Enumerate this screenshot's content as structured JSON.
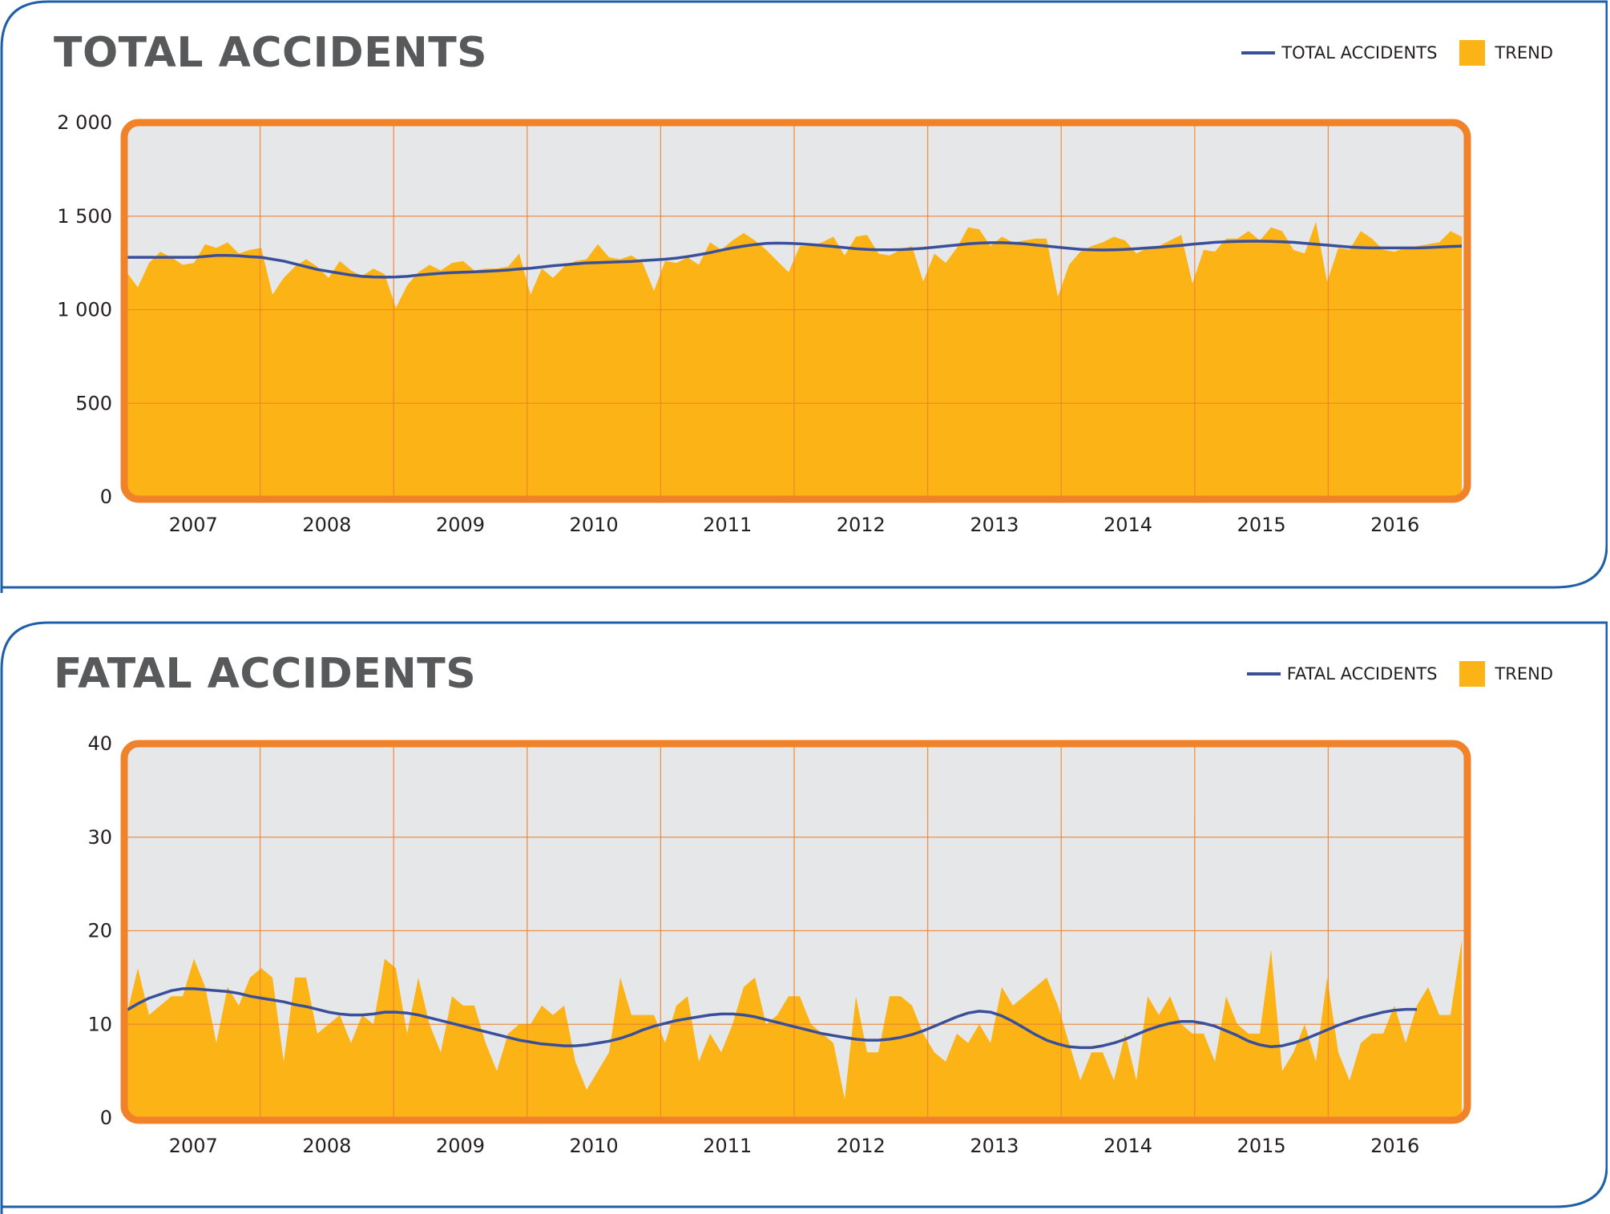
{
  "colors": {
    "area": "#fcb316",
    "trend_line": "#3a4f9a",
    "plot_border": "#f0822a",
    "plot_bg": "#e6e7e8",
    "grid": "#f0822a",
    "panel_border": "#1f5fa8",
    "title": "#58595b"
  },
  "icons": {
    "line_swatch": "legend-line-swatch",
    "area_swatch": "legend-area-swatch"
  },
  "chart_data": [
    {
      "type": "area",
      "title": "TOTAL ACCIDENTS",
      "legend": {
        "placement": "top-right",
        "line_label": "TOTAL ACCIDENTS",
        "area_label": "TREND"
      },
      "ylim": [
        0,
        2000
      ],
      "yticks": [
        0,
        500,
        1000,
        1500,
        2000
      ],
      "ytick_labels": [
        "0",
        "500",
        "1 000",
        "1 500",
        "2 000"
      ],
      "years": [
        "2007",
        "2008",
        "2009",
        "2010",
        "2011",
        "2012",
        "2013",
        "2014",
        "2015",
        "2016"
      ],
      "grid": true,
      "series": [
        {
          "name": "TREND",
          "kind": "area",
          "values": [
            1200,
            1120,
            1250,
            1310,
            1280,
            1240,
            1250,
            1350,
            1330,
            1360,
            1300,
            1320,
            1330,
            1080,
            1170,
            1230,
            1270,
            1230,
            1170,
            1260,
            1210,
            1180,
            1220,
            1190,
            1010,
            1130,
            1200,
            1240,
            1210,
            1250,
            1260,
            1210,
            1220,
            1220,
            1230,
            1300,
            1080,
            1220,
            1170,
            1230,
            1260,
            1270,
            1350,
            1280,
            1270,
            1290,
            1250,
            1100,
            1260,
            1250,
            1280,
            1240,
            1360,
            1320,
            1370,
            1410,
            1370,
            1320,
            1260,
            1200,
            1340,
            1340,
            1360,
            1390,
            1290,
            1390,
            1400,
            1300,
            1290,
            1320,
            1340,
            1150,
            1300,
            1250,
            1330,
            1440,
            1430,
            1340,
            1390,
            1360,
            1370,
            1380,
            1380,
            1070,
            1240,
            1310,
            1340,
            1360,
            1390,
            1370,
            1300,
            1330,
            1340,
            1370,
            1400,
            1140,
            1320,
            1310,
            1380,
            1380,
            1420,
            1370,
            1440,
            1420,
            1320,
            1300,
            1470,
            1150,
            1330,
            1320,
            1420,
            1380,
            1320,
            1310,
            1330,
            1340,
            1350,
            1360,
            1420,
            1390
          ]
        },
        {
          "name": "TOTAL ACCIDENTS",
          "kind": "line",
          "values": [
            1280,
            1280,
            1280,
            1280,
            1280,
            1280,
            1280,
            1285,
            1290,
            1290,
            1288,
            1283,
            1280,
            1270,
            1260,
            1245,
            1230,
            1215,
            1205,
            1195,
            1185,
            1178,
            1175,
            1174,
            1175,
            1178,
            1185,
            1190,
            1195,
            1198,
            1200,
            1202,
            1205,
            1208,
            1212,
            1218,
            1222,
            1228,
            1235,
            1240,
            1245,
            1250,
            1252,
            1254,
            1256,
            1258,
            1262,
            1266,
            1270,
            1276,
            1284,
            1294,
            1305,
            1318,
            1330,
            1340,
            1348,
            1354,
            1356,
            1355,
            1352,
            1348,
            1343,
            1338,
            1332,
            1326,
            1322,
            1320,
            1320,
            1321,
            1324,
            1328,
            1334,
            1340,
            1346,
            1352,
            1356,
            1358,
            1358,
            1356,
            1352,
            1346,
            1340,
            1334,
            1328,
            1323,
            1320,
            1319,
            1320,
            1322,
            1326,
            1330,
            1334,
            1339,
            1344,
            1350,
            1355,
            1360,
            1363,
            1365,
            1366,
            1366,
            1365,
            1363,
            1360,
            1355,
            1350,
            1345,
            1340,
            1335,
            1332,
            1330,
            1330,
            1330,
            1330,
            1330,
            1332,
            1335,
            1338,
            1340
          ]
        }
      ]
    },
    {
      "type": "area",
      "title": "FATAL ACCIDENTS",
      "legend": {
        "placement": "top-right",
        "line_label": "FATAL ACCIDENTS",
        "area_label": "TREND"
      },
      "ylim": [
        0,
        40
      ],
      "yticks": [
        0,
        10,
        20,
        30,
        40
      ],
      "ytick_labels": [
        "0",
        "10",
        "20",
        "30",
        "40"
      ],
      "years": [
        "2007",
        "2008",
        "2009",
        "2010",
        "2011",
        "2012",
        "2013",
        "2014",
        "2015",
        "2016"
      ],
      "grid": true,
      "series": [
        {
          "name": "TREND",
          "kind": "area",
          "values": [
            11,
            16,
            11,
            12,
            13,
            13,
            17,
            14,
            8,
            14,
            12,
            15,
            16,
            15,
            6,
            15,
            15,
            9,
            10,
            11,
            8,
            11,
            10,
            17,
            16,
            9,
            15,
            10,
            7,
            13,
            12,
            12,
            8,
            5,
            9,
            10,
            10,
            12,
            11,
            12,
            6,
            3,
            5,
            7,
            15,
            11,
            11,
            11,
            8,
            12,
            13,
            6,
            9,
            7,
            10,
            14,
            15,
            10,
            11,
            13,
            13,
            10,
            9,
            8,
            2,
            13,
            7,
            7,
            13,
            13,
            12,
            9,
            7,
            6,
            9,
            8,
            10,
            8,
            14,
            12,
            13,
            14,
            15,
            12,
            8,
            4,
            7,
            7,
            4,
            9,
            4,
            13,
            11,
            13,
            10,
            9,
            9,
            6,
            13,
            10,
            9,
            9,
            18,
            5,
            7,
            10,
            6,
            15,
            7,
            4,
            8,
            9,
            9,
            12,
            8,
            12,
            14,
            11,
            11,
            19
          ]
        },
        {
          "name": "FATAL ACCIDENTS",
          "kind": "line",
          "values": [
            11.5,
            12.2,
            12.8,
            13.2,
            13.6,
            13.8,
            13.8,
            13.7,
            13.6,
            13.5,
            13.3,
            13.0,
            12.8,
            12.6,
            12.4,
            12.1,
            11.9,
            11.6,
            11.3,
            11.1,
            11.0,
            11.0,
            11.1,
            11.3,
            11.3,
            11.2,
            11.0,
            10.7,
            10.4,
            10.1,
            9.8,
            9.5,
            9.2,
            8.9,
            8.6,
            8.3,
            8.1,
            7.9,
            7.8,
            7.7,
            7.7,
            7.8,
            8.0,
            8.2,
            8.5,
            8.9,
            9.4,
            9.8,
            10.1,
            10.4,
            10.6,
            10.8,
            11.0,
            11.1,
            11.1,
            11.0,
            10.8,
            10.5,
            10.2,
            9.9,
            9.6,
            9.3,
            9.0,
            8.8,
            8.6,
            8.4,
            8.3,
            8.3,
            8.4,
            8.6,
            8.9,
            9.3,
            9.8,
            10.3,
            10.8,
            11.2,
            11.4,
            11.3,
            10.9,
            10.3,
            9.6,
            8.9,
            8.3,
            7.9,
            7.6,
            7.5,
            7.5,
            7.7,
            8.0,
            8.4,
            8.9,
            9.4,
            9.8,
            10.1,
            10.3,
            10.3,
            10.1,
            9.8,
            9.3,
            8.8,
            8.2,
            7.8,
            7.6,
            7.7,
            8.0,
            8.4,
            8.9,
            9.4,
            9.9,
            10.3,
            10.7,
            11.0,
            11.3,
            11.5,
            11.6,
            11.6
          ]
        }
      ]
    }
  ]
}
